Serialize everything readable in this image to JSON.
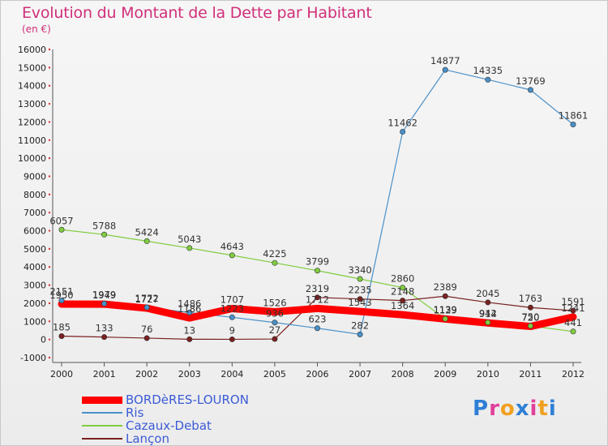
{
  "header": {
    "title": "Evolution du Montant de la Dette par Habitant",
    "subtitle": "(en €)"
  },
  "logo": {
    "text": "Proxiti",
    "colors": [
      "#2f7fd6",
      "#e0409a",
      "#f0a020",
      "#2f7fd6",
      "#e0409a",
      "#f0a020",
      "#2f7fd6"
    ]
  },
  "chart_data": {
    "type": "line",
    "x": [
      "2000",
      "2001",
      "2002",
      "2003",
      "2004",
      "2005",
      "2006",
      "2007",
      "2008",
      "2009",
      "2010",
      "2011",
      "2012"
    ],
    "ylim": [
      -1000,
      16000
    ],
    "yticks": [
      "-1000",
      "0",
      "1000",
      "2000",
      "3000",
      "4000",
      "5000",
      "6000",
      "7000",
      "8000",
      "9000",
      "10000",
      "11000",
      "12000",
      "13000",
      "14000",
      "15000",
      "16000"
    ],
    "grid": false,
    "legend": "bottom-left",
    "series": [
      {
        "name": "BORDèRES-LOURON",
        "color": "#ff0000",
        "emphasis": true,
        "values": [
          1950,
          1949,
          1727,
          1186,
          1707,
          1526,
          1712,
          1543,
          1364,
          1129,
          914,
          720,
          1241
        ],
        "labels": [
          "1950",
          "1949",
          "1727",
          "1186",
          "1707",
          "1526",
          "1712",
          "1543",
          "1364",
          "1129",
          "914",
          "720",
          "1241"
        ]
      },
      {
        "name": "Ris",
        "color": "#4a90c8",
        "values": [
          2151,
          1979,
          1772,
          1486,
          1223,
          936,
          623,
          282,
          11462,
          14877,
          14335,
          13769,
          11861
        ],
        "labels": [
          "2151",
          "1979",
          "1772",
          "1486",
          "1223",
          "936",
          "623",
          "282",
          "11462",
          "14877",
          "14335",
          "13769",
          "11861"
        ]
      },
      {
        "name": "Cazaux-Debat",
        "color": "#80cc40",
        "values": [
          6057,
          5788,
          5424,
          5043,
          4643,
          4225,
          3799,
          3340,
          2860,
          1139,
          942,
          750,
          441
        ],
        "labels": [
          "6057",
          "5788",
          "5424",
          "5043",
          "4643",
          "4225",
          "3799",
          "3340",
          "2860",
          "1139",
          "942",
          "750",
          "441"
        ]
      },
      {
        "name": "Lançon",
        "color": "#7a2020",
        "values": [
          185,
          133,
          76,
          13,
          9,
          27,
          2319,
          2235,
          2148,
          2389,
          2045,
          1763,
          1591
        ],
        "labels": [
          "185",
          "133",
          "76",
          "13",
          "9",
          "27",
          "2319",
          "2235",
          "2148",
          "2389",
          "2045",
          "1763",
          "1591"
        ]
      }
    ]
  }
}
